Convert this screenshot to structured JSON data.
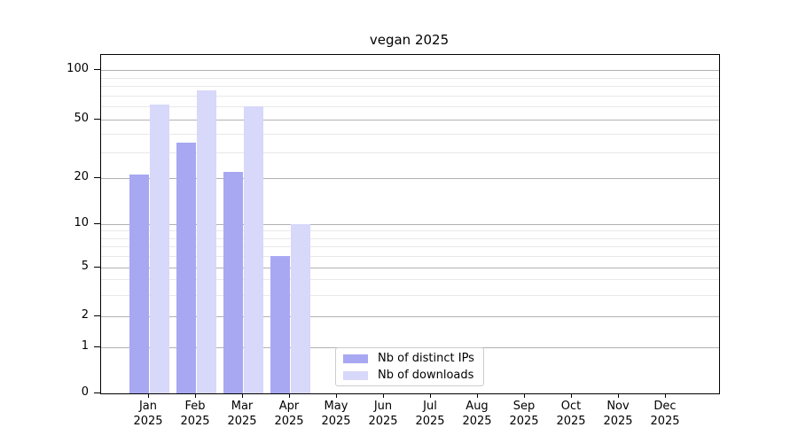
{
  "chart_data": {
    "type": "bar",
    "title": "vegan 2025",
    "categories": [
      "Jan 2025",
      "Feb 2025",
      "Mar 2025",
      "Apr 2025",
      "May 2025",
      "Jun 2025",
      "Jul 2025",
      "Aug 2025",
      "Sep 2025",
      "Oct 2025",
      "Nov 2025",
      "Dec 2025"
    ],
    "series": [
      {
        "name": "Nb of distinct IPs",
        "color": "#a8a8f2",
        "values": [
          21,
          35,
          22,
          6,
          0,
          0,
          0,
          0,
          0,
          0,
          0,
          0
        ]
      },
      {
        "name": "Nb of downloads",
        "color": "#d8d8fa",
        "values": [
          62,
          75,
          60,
          10,
          0,
          0,
          0,
          0,
          0,
          0,
          0,
          0
        ]
      }
    ],
    "xlabel": "",
    "ylabel": "",
    "yscale": "symlog",
    "yticks": [
      0,
      1,
      2,
      5,
      10,
      20,
      50,
      100
    ],
    "ylim": [
      0,
      120
    ],
    "grid": "both",
    "legend_position": "lower-center",
    "colors": {
      "grid_major": "#b2b2b2",
      "grid_minor": "#e8e8e8",
      "spine": "#000000",
      "background": "#ffffff"
    }
  }
}
